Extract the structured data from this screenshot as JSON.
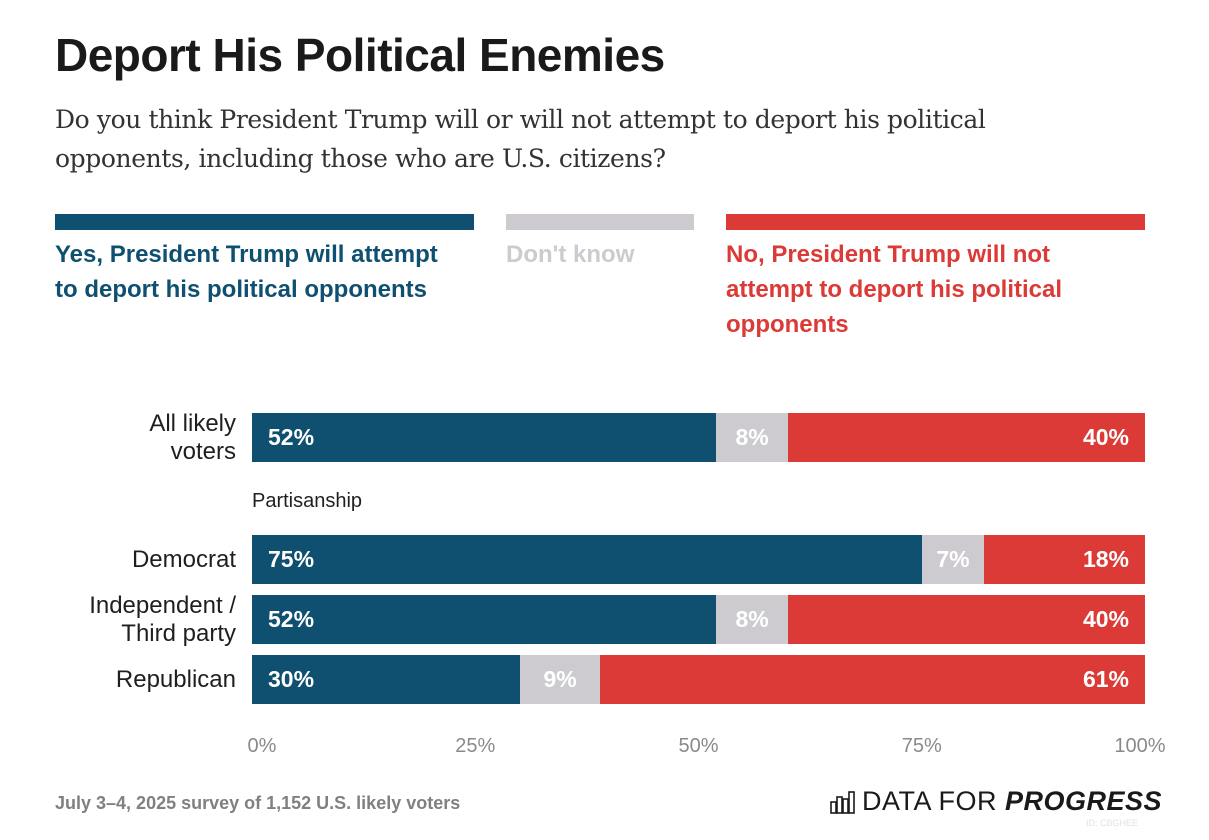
{
  "header": {
    "title": "Deport His Political Enemies",
    "subtitle": "Do you think President Trump will or will not attempt to deport his political opponents, including those who are U.S. citizens?"
  },
  "colors": {
    "yes": "#0f5070",
    "dont_know": "#cdcbcf",
    "no": "#db3a36"
  },
  "chart_data": {
    "type": "bar",
    "orientation": "horizontal-stacked",
    "title": "Deport His Political Enemies",
    "subtitle": "Do you think President Trump will or will not attempt to deport his political opponents, including those who are U.S. citizens?",
    "xlabel": "",
    "ylabel": "",
    "xlim": [
      0,
      100
    ],
    "x_ticks": [
      "0%",
      "25%",
      "50%",
      "75%",
      "100%"
    ],
    "legend_position": "top",
    "series": [
      {
        "name": "Yes, President Trump will attempt to deport his political opponents",
        "key": "yes",
        "values": [
          52,
          75,
          52,
          30
        ]
      },
      {
        "name": "Don't know",
        "key": "dont_know",
        "values": [
          8,
          7,
          8,
          9
        ]
      },
      {
        "name": "No, President Trump will not attempt to deport his political opponents",
        "key": "no",
        "values": [
          40,
          18,
          40,
          61
        ]
      }
    ],
    "categories": [
      "All likely voters",
      "Democrat",
      "Independent / Third party",
      "Republican"
    ],
    "category_lines": [
      [
        "All likely",
        "voters"
      ],
      [
        "Democrat"
      ],
      [
        "Independent /",
        "Third party"
      ],
      [
        "Republican"
      ]
    ],
    "group_label": "Partisanship"
  },
  "footer": {
    "source": "July 3–4, 2025 survey of 1,152 U.S. likely voters",
    "logo_light": "DATA FOR ",
    "logo_bold": "PROGRESS",
    "id": "ID: CBGHEE"
  }
}
